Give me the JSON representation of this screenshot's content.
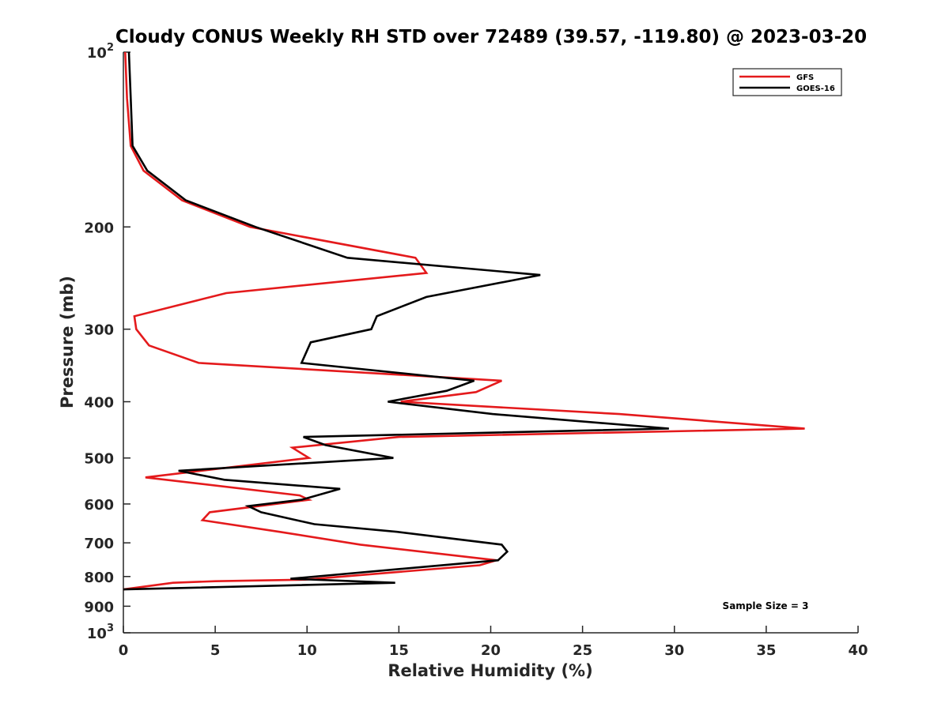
{
  "chart_data": {
    "type": "line",
    "title": "Cloudy CONUS Weekly RH STD over 72489 (39.57, -119.80) @ 2023-03-20",
    "xlabel": "Relative Humidity (%)",
    "ylabel": "Pressure (mb)",
    "xlim": [
      0,
      40
    ],
    "ylim": [
      100,
      1000
    ],
    "yscale": "log",
    "y_reversed": true,
    "grid": false,
    "legend_position": "top-right",
    "x_ticks": [
      0,
      5,
      10,
      15,
      20,
      25,
      30,
      35,
      40
    ],
    "x_tick_labels": [
      "0",
      "5",
      "10",
      "15",
      "20",
      "25",
      "30",
      "35",
      "40"
    ],
    "y_ticks": [
      100,
      200,
      300,
      400,
      500,
      600,
      700,
      800,
      900,
      1000
    ],
    "y_tick_labels": [
      {
        "base": "10",
        "exp": "2"
      },
      {
        "base": "200",
        "exp": ""
      },
      {
        "base": "300",
        "exp": ""
      },
      {
        "base": "400",
        "exp": ""
      },
      {
        "base": "500",
        "exp": ""
      },
      {
        "base": "600",
        "exp": ""
      },
      {
        "base": "700",
        "exp": ""
      },
      {
        "base": "800",
        "exp": ""
      },
      {
        "base": "900",
        "exp": ""
      },
      {
        "base": "10",
        "exp": "3"
      }
    ],
    "series": [
      {
        "name": "GFS",
        "color": "#e41a1c",
        "x": [
          0.1,
          0.2,
          0.4,
          1.1,
          3.2,
          6.9,
          15.9,
          16.5,
          5.6,
          0.6,
          0.7,
          1.4,
          4.1,
          20.6,
          19.2,
          15.1,
          27.0,
          37.1,
          15.0,
          9.2,
          10.1,
          1.2,
          9.6,
          10.1,
          4.7,
          4.3,
          8.5,
          12.9,
          20.3,
          19.4,
          9.9,
          5.0,
          2.7,
          0.0
        ],
        "y": [
          100,
          120,
          145,
          160,
          180,
          200,
          226,
          240,
          260,
          285,
          300,
          320,
          343,
          368,
          385,
          400,
          420,
          445,
          460,
          480,
          500,
          540,
          580,
          590,
          620,
          640,
          670,
          705,
          750,
          765,
          810,
          815,
          820,
          842
        ]
      },
      {
        "name": "GOES-16",
        "color": "#000000",
        "x": [
          0.3,
          0.4,
          0.5,
          1.3,
          3.4,
          7.2,
          12.2,
          22.7,
          16.5,
          13.8,
          13.5,
          10.2,
          9.7,
          19.1,
          17.6,
          14.4,
          20.1,
          29.7,
          9.8,
          11.0,
          14.7,
          3.0,
          5.5,
          11.8,
          9.7,
          6.8,
          7.5,
          10.4,
          14.9,
          20.6,
          20.9,
          20.4,
          9.1,
          14.8,
          0.0
        ],
        "y": [
          100,
          120,
          145,
          160,
          180,
          200,
          226,
          242,
          264,
          285,
          300,
          316,
          343,
          368,
          383,
          400,
          420,
          445,
          460,
          475,
          500,
          526,
          545,
          565,
          590,
          605,
          620,
          650,
          670,
          705,
          725,
          750,
          807,
          820,
          842
        ]
      }
    ],
    "annotations": [
      {
        "text": "Sample Size = 3"
      }
    ]
  }
}
